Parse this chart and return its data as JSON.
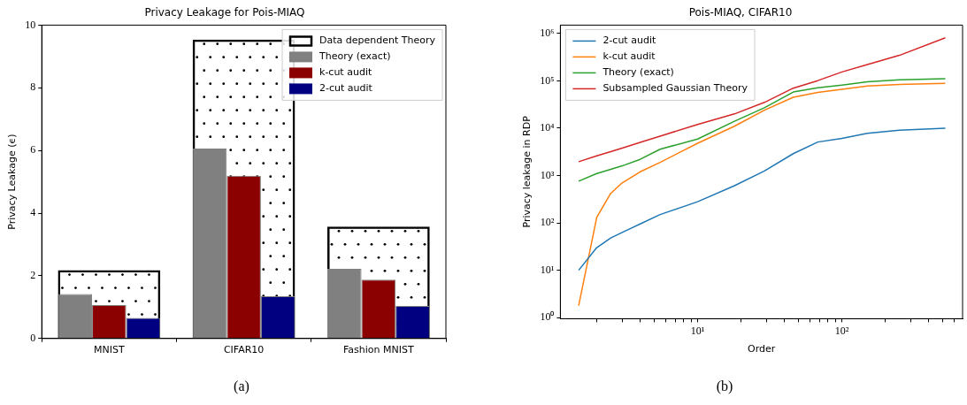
{
  "chart_data": [
    {
      "type": "bar",
      "title": "Privacy Leakage for Pois-MIAQ",
      "ylabel": "Privacy Leakage (ϵ)",
      "categories": [
        "MNIST",
        "CIFAR10",
        "Fashion MNIST"
      ],
      "series": [
        {
          "name": "Data dependent Theory",
          "color": "#000000",
          "values": [
            2.18,
            9.54,
            3.57
          ]
        },
        {
          "name": "Theory (exact)",
          "color": "#808080",
          "values": [
            1.42,
            6.06,
            2.22
          ]
        },
        {
          "name": "k-cut audit",
          "color": "#8b0000",
          "values": [
            1.07,
            5.19,
            1.88
          ]
        },
        {
          "name": "2-cut audit",
          "color": "#000080",
          "values": [
            0.66,
            1.35,
            1.04
          ]
        }
      ],
      "ylim": [
        0,
        10
      ],
      "yticks": [
        0,
        2,
        4,
        6,
        8,
        10
      ],
      "legend": "top right",
      "annotations": [
        "(a)"
      ]
    },
    {
      "type": "line",
      "title": "Pois-MIAQ, CIFAR10",
      "xlabel": "Order",
      "ylabel": "Privacy leakage in RDP",
      "log": "xy",
      "x": [
        1.5,
        2,
        2.5,
        3,
        4,
        5.5,
        10,
        18,
        29,
        46,
        68,
        100,
        150,
        250,
        520
      ],
      "series": [
        {
          "name": "2-cut audit",
          "color": "#1f77b4",
          "values": [
            10,
            30,
            48,
            63,
            95,
            150,
            280,
            610,
            1250,
            2900,
            5100,
            6100,
            7800,
            9100,
            10000
          ]
        },
        {
          "name": "k-cut audit",
          "color": "#ff7f0e",
          "values": [
            1.8,
            130,
            420,
            700,
            1200,
            1900,
            4800,
            11000,
            24000,
            45000,
            57000,
            66000,
            78000,
            84000,
            88000
          ]
        },
        {
          "name": "Theory (exact)",
          "color": "#2ca02c",
          "values": [
            760,
            1100,
            1350,
            1600,
            2200,
            3600,
            5900,
            14000,
            27000,
            58000,
            71000,
            81000,
            95000,
            105000,
            111000
          ]
        },
        {
          "name": "Subsampled Gaussian Theory",
          "color": "#d62728",
          "values": [
            1960,
            2600,
            3200,
            3800,
            5000,
            6800,
            12000,
            20000,
            35000,
            70000,
            101000,
            154000,
            220000,
            345000,
            810000
          ]
        }
      ],
      "xlim": [
        1.12,
        685
      ],
      "xticks": [
        {
          "value": 2,
          "label": null
        },
        {
          "value": 3,
          "label": null
        },
        {
          "value": 4,
          "label": null
        },
        {
          "value": 5,
          "label": null
        },
        {
          "value": 6,
          "label": null
        },
        {
          "value": 7,
          "label": null
        },
        {
          "value": 8,
          "label": null
        },
        {
          "value": 9,
          "label": null
        },
        {
          "value": 10,
          "label": "10¹"
        },
        {
          "value": 20,
          "label": null
        },
        {
          "value": 30,
          "label": null
        },
        {
          "value": 40,
          "label": null
        },
        {
          "value": 50,
          "label": null
        },
        {
          "value": 60,
          "label": null
        },
        {
          "value": 70,
          "label": null
        },
        {
          "value": 80,
          "label": null
        },
        {
          "value": 90,
          "label": null
        },
        {
          "value": 100,
          "label": "10²"
        },
        {
          "value": 200,
          "label": null
        },
        {
          "value": 300,
          "label": null
        },
        {
          "value": 400,
          "label": null
        },
        {
          "value": 500,
          "label": null
        },
        {
          "value": 600,
          "label": null
        }
      ],
      "ylim": [
        0.95,
        1500000
      ],
      "yticks": [
        {
          "value": 1,
          "label": "10⁰"
        },
        {
          "value": 10,
          "label": "10¹"
        },
        {
          "value": 100,
          "label": "10²"
        },
        {
          "value": 1000,
          "label": "10³"
        },
        {
          "value": 10000,
          "label": "10⁴"
        },
        {
          "value": 100000,
          "label": "10⁵"
        },
        {
          "value": 1000000,
          "label": "10⁶"
        }
      ],
      "legend": "top left",
      "annotations": [
        "(b)"
      ]
    }
  ]
}
